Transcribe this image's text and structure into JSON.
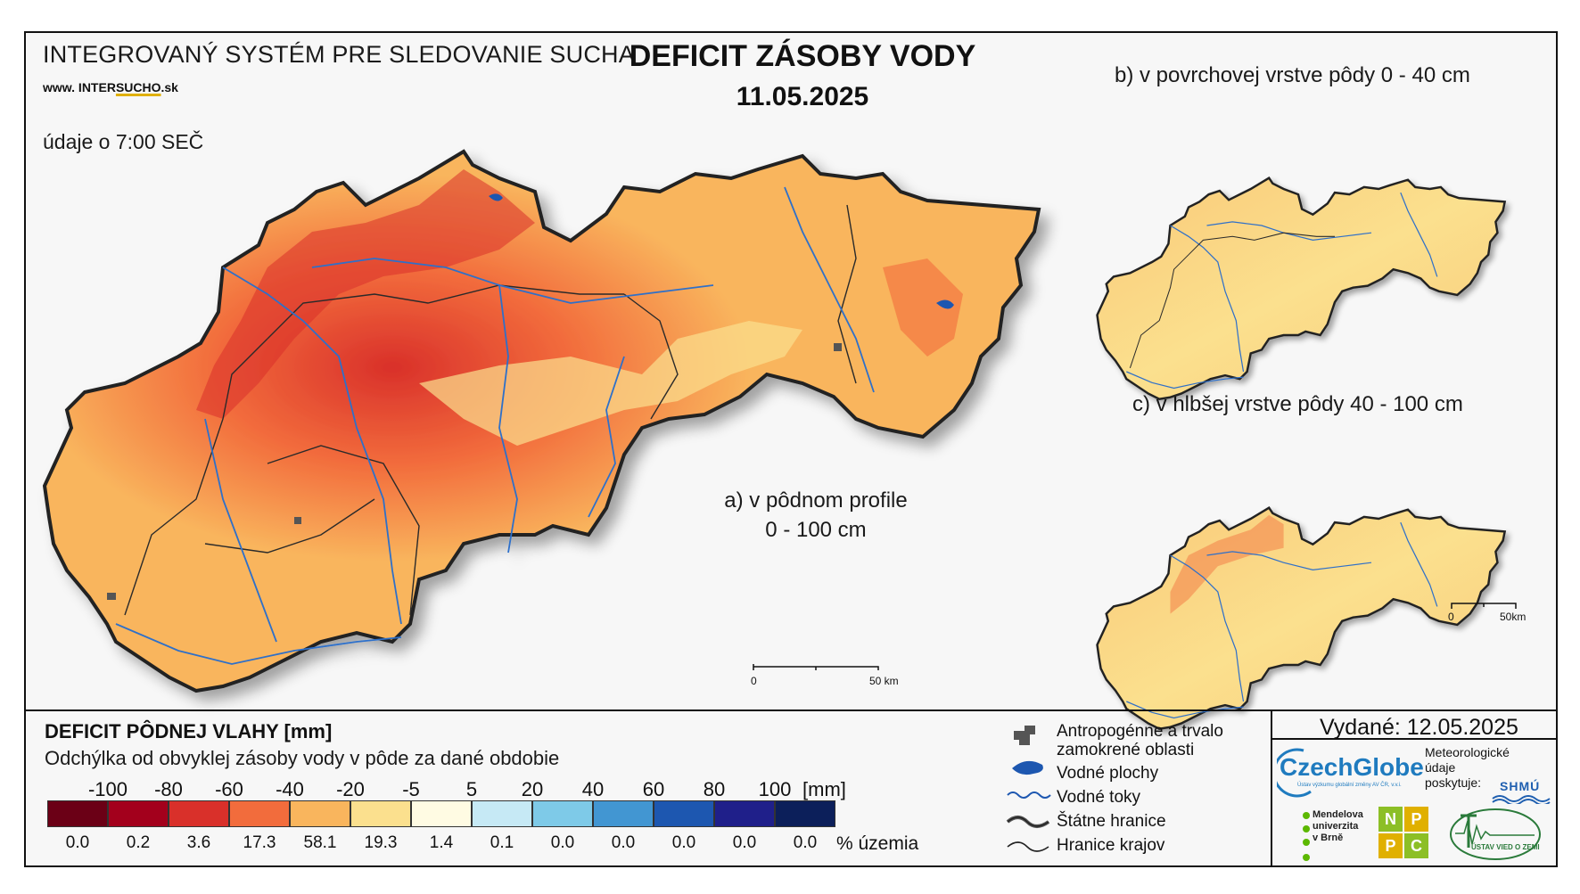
{
  "header": {
    "system_title": "INTEGROVANÝ SYSTÉM PRE SLEDOVANIE SUCHA",
    "website_prefix": "www. INTER",
    "website_accent": "SUCHO",
    "website_suffix": ".sk",
    "data_note": "údaje o 7:00 SEČ",
    "main_title": "DEFICIT ZÁSOBY VODY",
    "date": "11.05.2025"
  },
  "maps": {
    "a_label_line1": "a) v pôdnom profile",
    "a_label_line2": "0 - 100 cm",
    "b_label": "b) v povrchovej vrstve pôdy 0 - 40 cm",
    "c_label": "c) v hlbšej vrstve pôdy 40 - 100 cm",
    "scale_main": {
      "start": "0",
      "end": "50 km"
    },
    "scale_small": {
      "start": "0",
      "end": "50km"
    }
  },
  "legend": {
    "title": "DEFICIT PÔDNEJ VLAHY [mm]",
    "subtitle": "Odchýlka od obvyklej zásoby vody v pôde za dané obdobie",
    "ticks": [
      "-100",
      "-80",
      "-60",
      "-40",
      "-20",
      "-5",
      "5",
      "20",
      "40",
      "60",
      "80",
      "100"
    ],
    "unit": "[mm]",
    "classes": [
      {
        "color": "#6b0016",
        "percent": "0.0"
      },
      {
        "color": "#a3001c",
        "percent": "0.2"
      },
      {
        "color": "#d9302a",
        "percent": "3.6"
      },
      {
        "color": "#f26c3c",
        "percent": "17.3"
      },
      {
        "color": "#f9b55d",
        "percent": "58.1"
      },
      {
        "color": "#fbe08e",
        "percent": "19.3"
      },
      {
        "color": "#fffbe3",
        "percent": "1.4"
      },
      {
        "color": "#c6e9f5",
        "percent": "0.1"
      },
      {
        "color": "#7ecae8",
        "percent": "0.0"
      },
      {
        "color": "#4296d2",
        "percent": "0.0"
      },
      {
        "color": "#1d57b0",
        "percent": "0.0"
      },
      {
        "color": "#1f1f8a",
        "percent": "0.0"
      },
      {
        "color": "#0c1f5a",
        "percent": "0.0"
      }
    ],
    "percent_label": "% územia"
  },
  "symbols": {
    "urban_line1": "Antropogénne a trvalo",
    "urban_line2": "zamokrené oblasti",
    "water_bodies": "Vodné plochy",
    "rivers": "Vodné toky",
    "state_border": "Štátne hranice",
    "region_border": "Hranice krajov"
  },
  "footer": {
    "issued": "Vydané: 12.05.2025",
    "meteo_line1": "Meteorologické",
    "meteo_line2": "údaje",
    "meteo_line3": "poskytuje:",
    "czechglobe": "CzechGlobe",
    "czechglobe_sub": "Ústav výzkumu globální změny AV ČR, v.v.i.",
    "shmu": "SHMÚ",
    "mendel_line1": "Mendelova",
    "mendel_line2": "univerzita",
    "mendel_line3": "v Brně",
    "npcc": [
      "N",
      "P",
      "P",
      "C"
    ],
    "uvz": "ÚSTAV VIED O ZEMI"
  },
  "colors": {
    "deficit_dark": "#d9302a",
    "deficit_mid": "#f26c3c",
    "deficit_main": "#f9b55d",
    "deficit_light": "#fbe08e",
    "river": "#2f6fc9",
    "border": "#222222"
  }
}
